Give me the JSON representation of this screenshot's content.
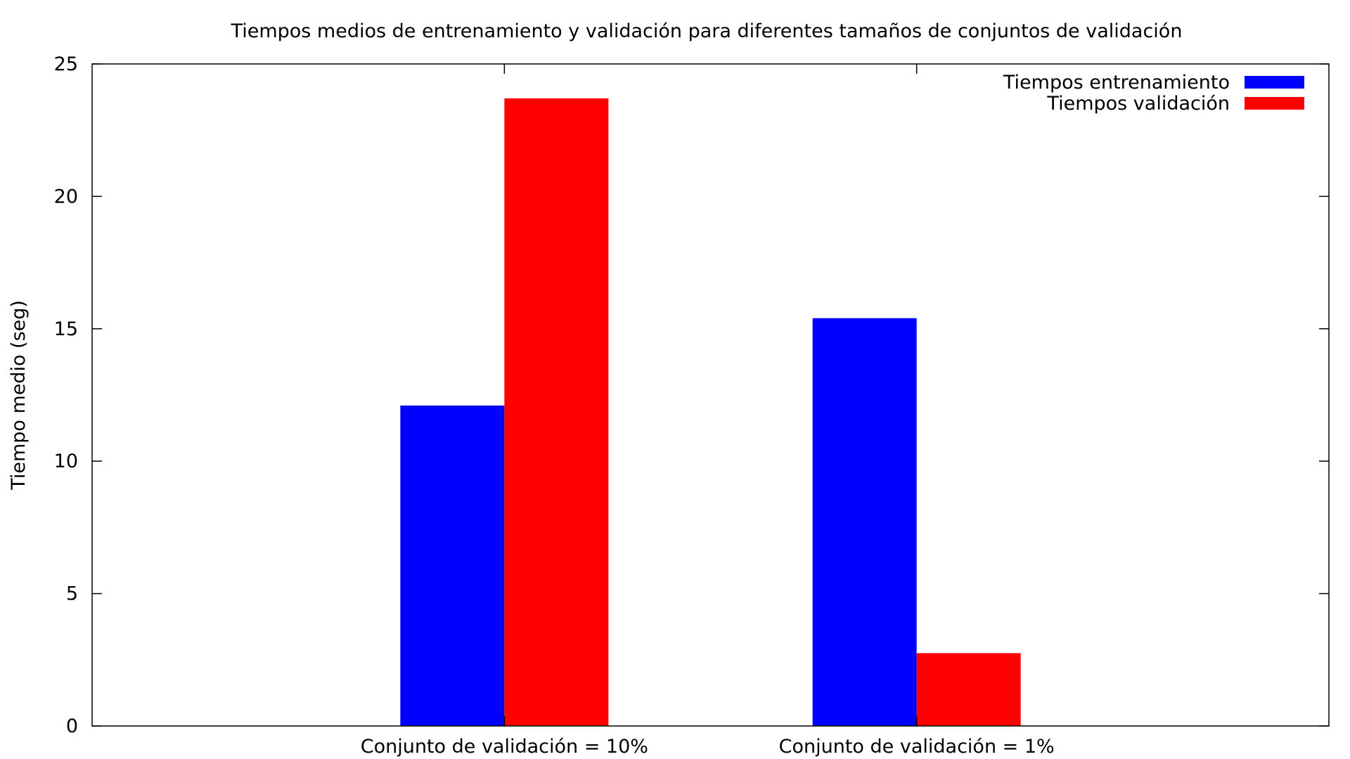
{
  "chart_data": {
    "type": "bar",
    "title": "Tiempos medios de entrenamiento y validación para diferentes tamaños de conjuntos de validación",
    "xlabel": "",
    "ylabel": "Tiempo medio (seg)",
    "ylim": [
      0,
      25
    ],
    "yticks": [
      "0",
      "5",
      "10",
      "15",
      "20",
      "25"
    ],
    "categories": [
      "Conjunto de validación = 10%",
      "Conjunto de validación = 1%"
    ],
    "series": [
      {
        "name": "Tiempos entrenamiento",
        "color": "#0000ff",
        "values": [
          12.1,
          15.4
        ]
      },
      {
        "name": "Tiempos validación",
        "color": "#ff0000",
        "values": [
          23.7,
          2.75
        ]
      }
    ],
    "grid": false,
    "legend": "top-right"
  }
}
